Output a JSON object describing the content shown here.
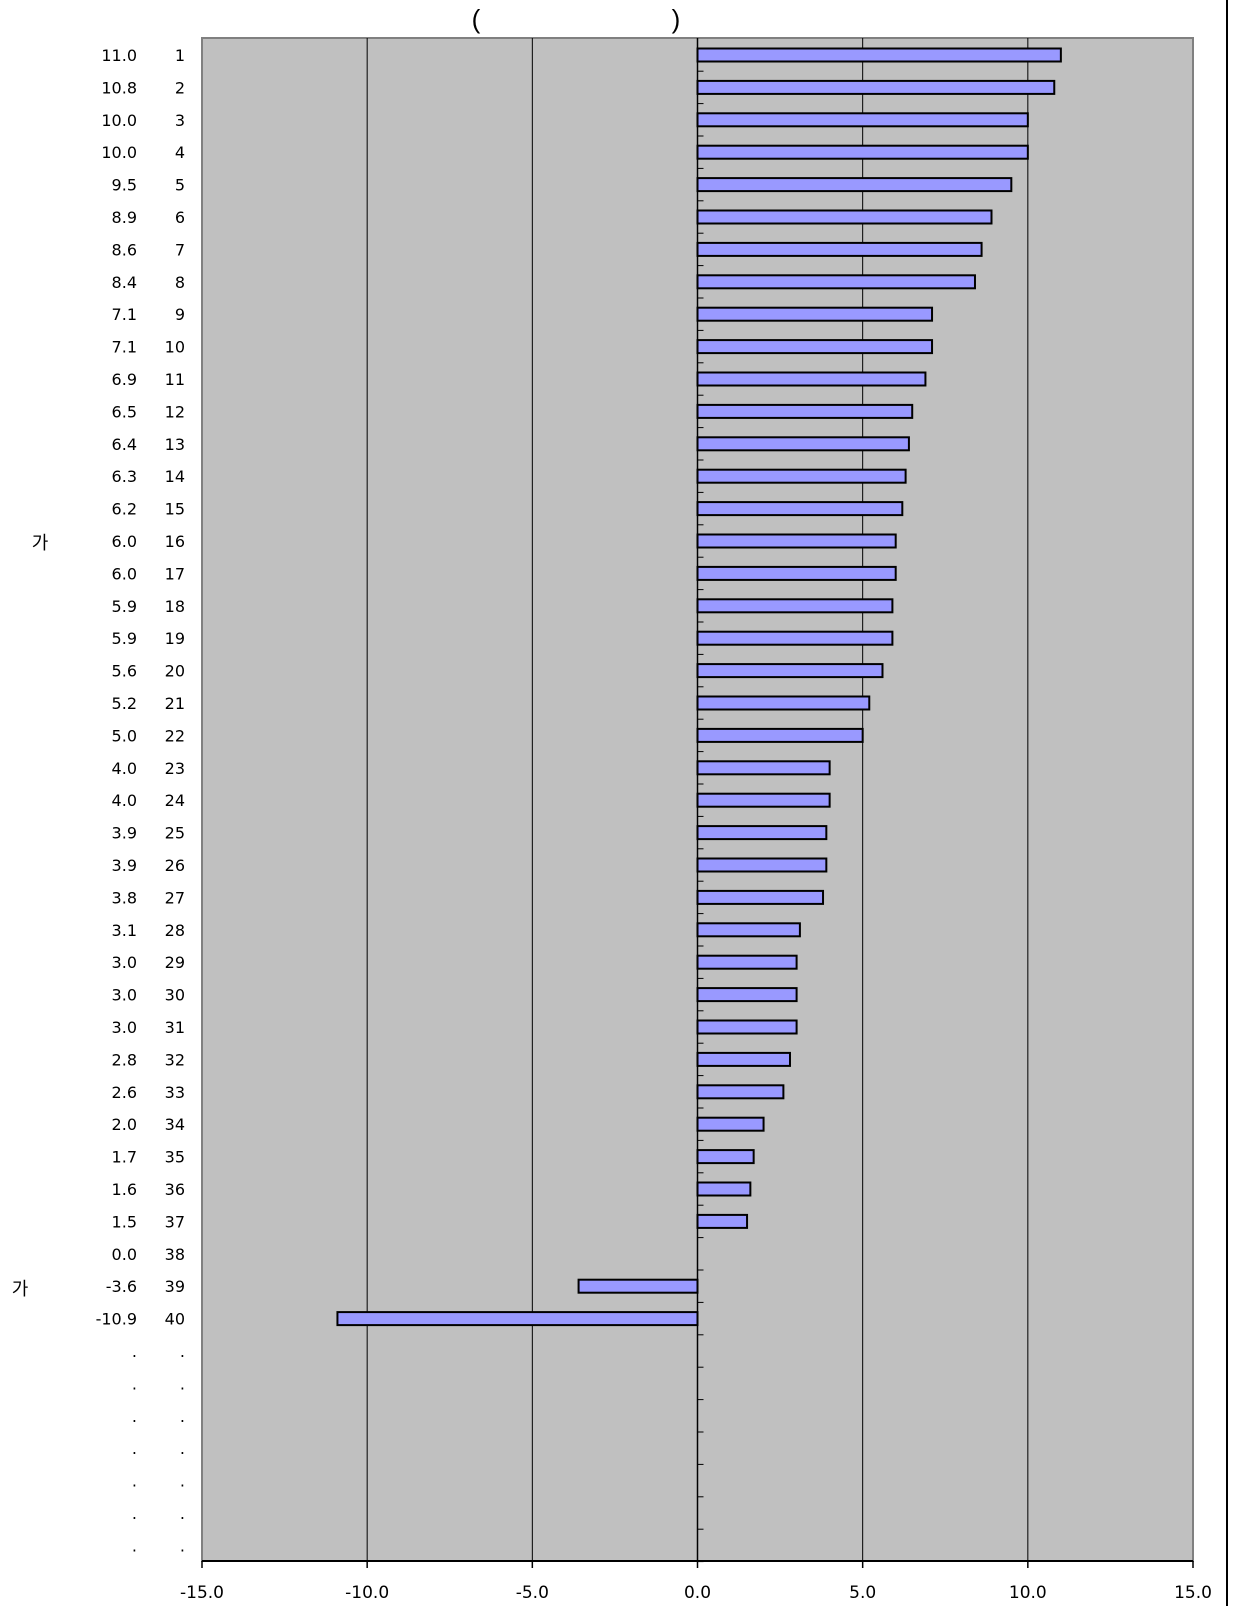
{
  "title_parts": [
    "(",
    ")"
  ],
  "side_labels": [
    "가",
    "가"
  ],
  "colors": {
    "plot_bg": "#c0c0c0",
    "bar_fill": "#9999ff",
    "bar_stroke": "#000000",
    "grid": "#000000",
    "frame": "#808080"
  },
  "chart_data": {
    "type": "bar",
    "orientation": "horizontal",
    "xlim": [
      -15.0,
      15.0
    ],
    "x_ticks": [
      "-15.0",
      "-10.0",
      "-5.0",
      "0.0",
      "5.0",
      "10.0",
      "15.0"
    ],
    "grid": true,
    "categories": [
      "1",
      "2",
      "3",
      "4",
      "5",
      "6",
      "7",
      "8",
      "9",
      "10",
      "11",
      "12",
      "13",
      "14",
      "15",
      "16",
      "17",
      "18",
      "19",
      "20",
      "21",
      "22",
      "23",
      "24",
      "25",
      "26",
      "27",
      "28",
      "29",
      "30",
      "31",
      "32",
      "33",
      "34",
      "35",
      "36",
      "37",
      "38",
      "39",
      "40",
      ".",
      ".",
      ".",
      ".",
      ".",
      ".",
      "."
    ],
    "value_labels": [
      "11.0",
      "10.8",
      "10.0",
      "10.0",
      "9.5",
      "8.9",
      "8.6",
      "8.4",
      "7.1",
      "7.1",
      "6.9",
      "6.5",
      "6.4",
      "6.3",
      "6.2",
      "6.0",
      "6.0",
      "5.9",
      "5.9",
      "5.6",
      "5.2",
      "5.0",
      "4.0",
      "4.0",
      "3.9",
      "3.9",
      "3.8",
      "3.1",
      "3.0",
      "3.0",
      "3.0",
      "2.8",
      "2.6",
      "2.0",
      "1.7",
      "1.6",
      "1.5",
      "0.0",
      "-3.6",
      "-10.9",
      ".",
      ".",
      ".",
      ".",
      ".",
      ".",
      "."
    ],
    "values": [
      11.0,
      10.8,
      10.0,
      10.0,
      9.5,
      8.9,
      8.6,
      8.4,
      7.1,
      7.1,
      6.9,
      6.5,
      6.4,
      6.3,
      6.2,
      6.0,
      6.0,
      5.9,
      5.9,
      5.6,
      5.2,
      5.0,
      4.0,
      4.0,
      3.9,
      3.9,
      3.8,
      3.1,
      3.0,
      3.0,
      3.0,
      2.8,
      2.6,
      2.0,
      1.7,
      1.6,
      1.5,
      0.0,
      -3.6,
      -10.9,
      null,
      null,
      null,
      null,
      null,
      null,
      null
    ]
  }
}
